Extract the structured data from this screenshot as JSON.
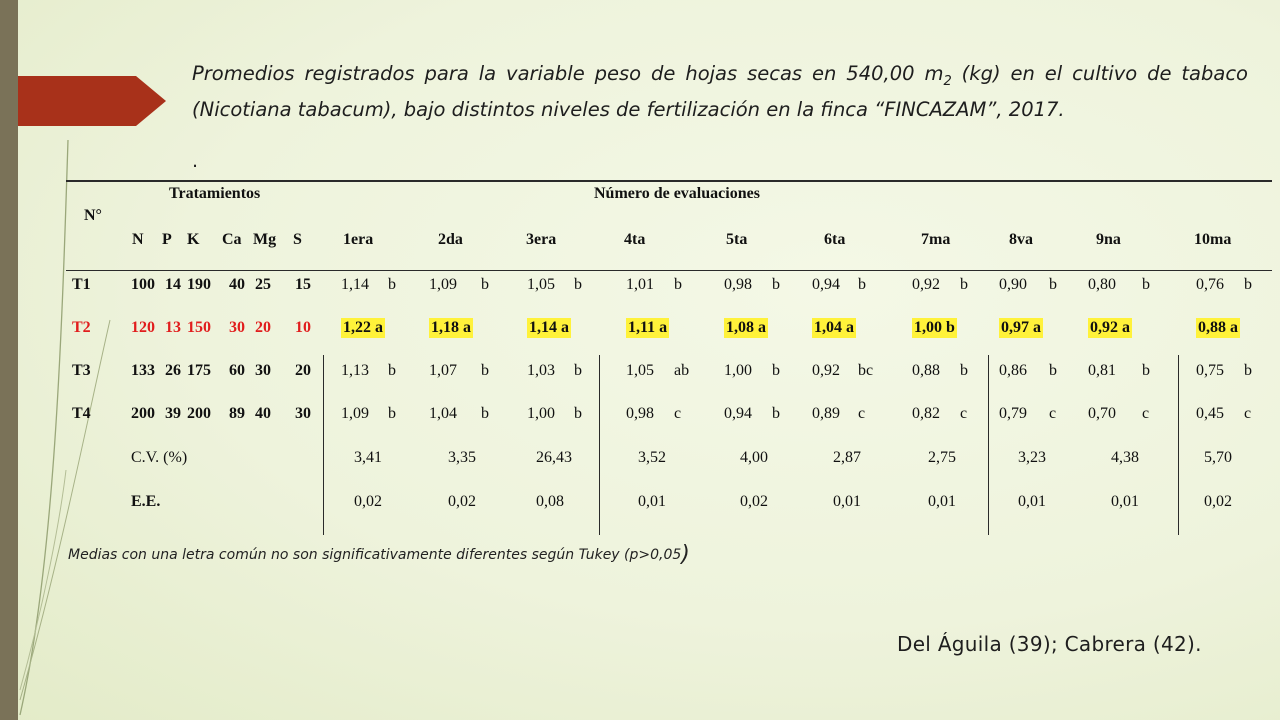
{
  "slide": {
    "title_line1": "Promedios registrados para la variable peso de hojas secas  en 540,00 m",
    "title_sub": "2",
    "title_line1_end": " (kg) en el cultivo de tabaco (Nicotiana tabacum), bajo distintos niveles de fertilización en la finca “FINCAZAM”, 2017.",
    "dot": ".",
    "footnote": "Medias con una letra común no son significativamente diferentes según Tukey (p>0,05",
    "footnote_paren": ")",
    "credit": "Del Águila (39); Cabrera (42)."
  },
  "table": {
    "header": {
      "no": "N°",
      "tratamientos": "Tratamientos",
      "evaluaciones": "Número de evaluaciones",
      "nutrients": [
        "N",
        "P",
        "K",
        "Ca",
        "Mg",
        "S"
      ],
      "evals": [
        "1era",
        "2da",
        "3era",
        "4ta",
        "5ta",
        "6ta",
        "7ma",
        "8va",
        "9na",
        "10ma"
      ]
    },
    "rows": [
      {
        "id": "T1",
        "npk": [
          "100",
          "14",
          "190",
          "40",
          "25",
          "15"
        ],
        "values": [
          "1,14",
          "1,09",
          "1,05",
          "1,01",
          "0,98",
          "0,94",
          "0,92",
          "0,90",
          "0,80",
          "0,76"
        ],
        "letters": [
          "b",
          "b",
          "b",
          "b",
          "b",
          "b",
          "b",
          "b",
          "b",
          "b"
        ]
      },
      {
        "id": "T2",
        "npk": [
          "120",
          "13",
          "150",
          "30",
          "20",
          "10"
        ],
        "values": [
          "1,22",
          "1,18",
          "1,14",
          "1,11",
          "1,08",
          "1,04",
          "1,00",
          "0,97",
          "0,92",
          "0,88"
        ],
        "letters": [
          "a",
          "a",
          "a",
          "a",
          "a",
          "a",
          "b",
          "a",
          "a",
          "a"
        ]
      },
      {
        "id": "T3",
        "npk": [
          "133",
          "26",
          "175",
          "60",
          "30",
          "20"
        ],
        "values": [
          "1,13",
          "1,07",
          "1,03",
          "1,05",
          "1,00",
          "0,92",
          "0,88",
          "0,86",
          "0,81",
          "0,75"
        ],
        "letters": [
          "b",
          "b",
          "b",
          "ab",
          "b",
          "bc",
          "b",
          "b",
          "b",
          "b"
        ]
      },
      {
        "id": "T4",
        "npk": [
          "200",
          "39",
          "200",
          "89",
          "40",
          "30"
        ],
        "values": [
          "1,09",
          "1,04",
          "1,00",
          "0,98",
          "0,94",
          "0,89",
          "0,82",
          "0,79",
          "0,70",
          "0,45"
        ],
        "letters": [
          "b",
          "b",
          "b",
          "c",
          "b",
          "c",
          "c",
          "c",
          "c",
          "c"
        ]
      }
    ],
    "cv": {
      "label": "C.V. (%)",
      "values": [
        "3,41",
        "3,35",
        "26,43",
        "3,52",
        "4,00",
        "2,87",
        "2,75",
        "3,23",
        "4,38",
        "5,70"
      ]
    },
    "ee": {
      "label": "E.E.",
      "values": [
        "0,02",
        "0,02",
        "0,08",
        "0,01",
        "0,02",
        "0,01",
        "0,01",
        "0,01",
        "0,01",
        "0,02"
      ]
    }
  },
  "colors": {
    "accent_arrow": "#a8311a",
    "highlight": "#fff23a",
    "t2_text": "#e11d1d",
    "sidebar": "#7a7258"
  }
}
